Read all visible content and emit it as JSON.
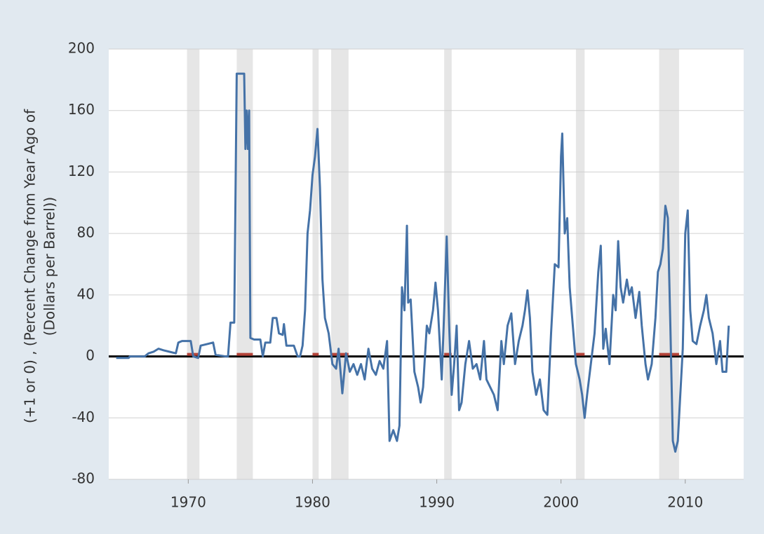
{
  "chart_data": {
    "type": "line",
    "y_label": [
      "(+1 or 0) , (Percent Change from Year Ago of",
      "(Dollars per Barrel))"
    ],
    "x": [
      1964.2,
      1965.2,
      1965.3,
      1966.5,
      1966.8,
      1967.2,
      1967.6,
      1968.0,
      1968.5,
      1969.0,
      1969.2,
      1969.5,
      1970.2,
      1970.4,
      1970.8,
      1971.0,
      1971.5,
      1972.0,
      1972.2,
      1973.0,
      1973.2,
      1973.4,
      1973.7,
      1973.9,
      1974.5,
      1974.6,
      1974.7,
      1974.8,
      1974.9,
      1975.0,
      1975.3,
      1975.8,
      1976.0,
      1976.2,
      1976.6,
      1976.8,
      1977.1,
      1977.3,
      1977.6,
      1977.7,
      1977.9,
      1978.5,
      1978.8,
      1979.0,
      1979.2,
      1979.4,
      1979.6,
      1979.8,
      1980.0,
      1980.2,
      1980.4,
      1980.6,
      1980.8,
      1981.0,
      1981.3,
      1981.6,
      1981.9,
      1982.1,
      1982.4,
      1982.7,
      1983.0,
      1983.3,
      1983.6,
      1983.9,
      1984.2,
      1984.5,
      1984.8,
      1985.1,
      1985.4,
      1985.7,
      1986.0,
      1986.2,
      1986.5,
      1986.8,
      1987.0,
      1987.2,
      1987.4,
      1987.6,
      1987.7,
      1987.9,
      1988.2,
      1988.5,
      1988.7,
      1988.9,
      1989.2,
      1989.4,
      1989.7,
      1989.9,
      1990.1,
      1990.4,
      1990.6,
      1990.8,
      1991.0,
      1991.2,
      1991.4,
      1991.6,
      1991.8,
      1992.0,
      1992.3,
      1992.6,
      1992.9,
      1993.2,
      1993.5,
      1993.8,
      1994.0,
      1994.3,
      1994.6,
      1994.9,
      1995.2,
      1995.4,
      1995.7,
      1996.0,
      1996.3,
      1996.6,
      1996.9,
      1997.1,
      1997.3,
      1997.5,
      1997.7,
      1998.0,
      1998.3,
      1998.6,
      1998.9,
      1999.2,
      1999.5,
      1999.8,
      2000.0,
      2000.1,
      2000.3,
      2000.5,
      2000.7,
      2000.9,
      2001.2,
      2001.5,
      2001.7,
      2001.9,
      2002.1,
      2002.4,
      2002.7,
      2003.0,
      2003.2,
      2003.4,
      2003.6,
      2003.9,
      2004.2,
      2004.4,
      2004.6,
      2004.8,
      2005.0,
      2005.3,
      2005.5,
      2005.7,
      2006.0,
      2006.3,
      2006.5,
      2006.8,
      2007.0,
      2007.3,
      2007.6,
      2007.8,
      2008.0,
      2008.2,
      2008.4,
      2008.6,
      2008.8,
      2009.0,
      2009.2,
      2009.4,
      2009.6,
      2009.8,
      2010.0,
      2010.2,
      2010.4,
      2010.6,
      2010.9,
      2011.2,
      2011.5,
      2011.7,
      2011.9,
      2012.2,
      2012.5,
      2012.8,
      2013.0,
      2013.3,
      2013.5
    ],
    "series": [
      {
        "color": "#4572a7",
        "values": [
          -1,
          -1,
          0,
          0,
          2,
          3,
          5,
          4,
          3,
          2,
          9,
          10,
          10,
          0,
          -1,
          7,
          8,
          9,
          1,
          0,
          0,
          22,
          22,
          184,
          184,
          135,
          160,
          135,
          160,
          12,
          11,
          11,
          0,
          9,
          9,
          25,
          25,
          15,
          14,
          21,
          7,
          7,
          0,
          0,
          7,
          30,
          80,
          95,
          118,
          130,
          148,
          110,
          50,
          25,
          15,
          -5,
          -8,
          5,
          -24,
          2,
          -10,
          -5,
          -12,
          -5,
          -15,
          5,
          -8,
          -12,
          -3,
          -8,
          10,
          -55,
          -48,
          -55,
          -45,
          45,
          30,
          85,
          35,
          37,
          -10,
          -20,
          -30,
          -20,
          20,
          15,
          30,
          48,
          30,
          -15,
          30,
          78,
          20,
          -25,
          -5,
          20,
          -35,
          -30,
          -5,
          10,
          -8,
          -5,
          -15,
          10,
          -15,
          -20,
          -25,
          -35,
          10,
          -5,
          20,
          28,
          -5,
          10,
          20,
          30,
          43,
          25,
          -10,
          -25,
          -15,
          -35,
          -38,
          15,
          60,
          58,
          130,
          145,
          80,
          90,
          45,
          25,
          -5,
          -15,
          -25,
          -40,
          -25,
          -5,
          15,
          55,
          72,
          5,
          18,
          -5,
          40,
          30,
          75,
          45,
          35,
          50,
          40,
          45,
          25,
          42,
          20,
          -5,
          -15,
          -5,
          25,
          55,
          60,
          70,
          98,
          90,
          20,
          -55,
          -62,
          -55,
          -25,
          5,
          80,
          95,
          30,
          10,
          8,
          20,
          30,
          40,
          25,
          15,
          -5,
          10,
          -10,
          -10,
          20
        ]
      }
    ],
    "recessions": [
      [
        1969.9,
        1970.9
      ],
      [
        1973.9,
        1975.2
      ],
      [
        1980.0,
        1980.5
      ],
      [
        1981.5,
        1982.9
      ],
      [
        1990.6,
        1991.2
      ],
      [
        2001.2,
        2001.9
      ],
      [
        2007.9,
        2009.5
      ]
    ],
    "xlim": [
      1963.6,
      2014.7
    ],
    "xticks": [
      1970,
      1980,
      1990,
      2000,
      2010
    ],
    "ylim": [
      -80,
      200
    ],
    "yticks": [
      -80,
      -40,
      0,
      40,
      80,
      120,
      160,
      200
    ],
    "grid": true
  }
}
